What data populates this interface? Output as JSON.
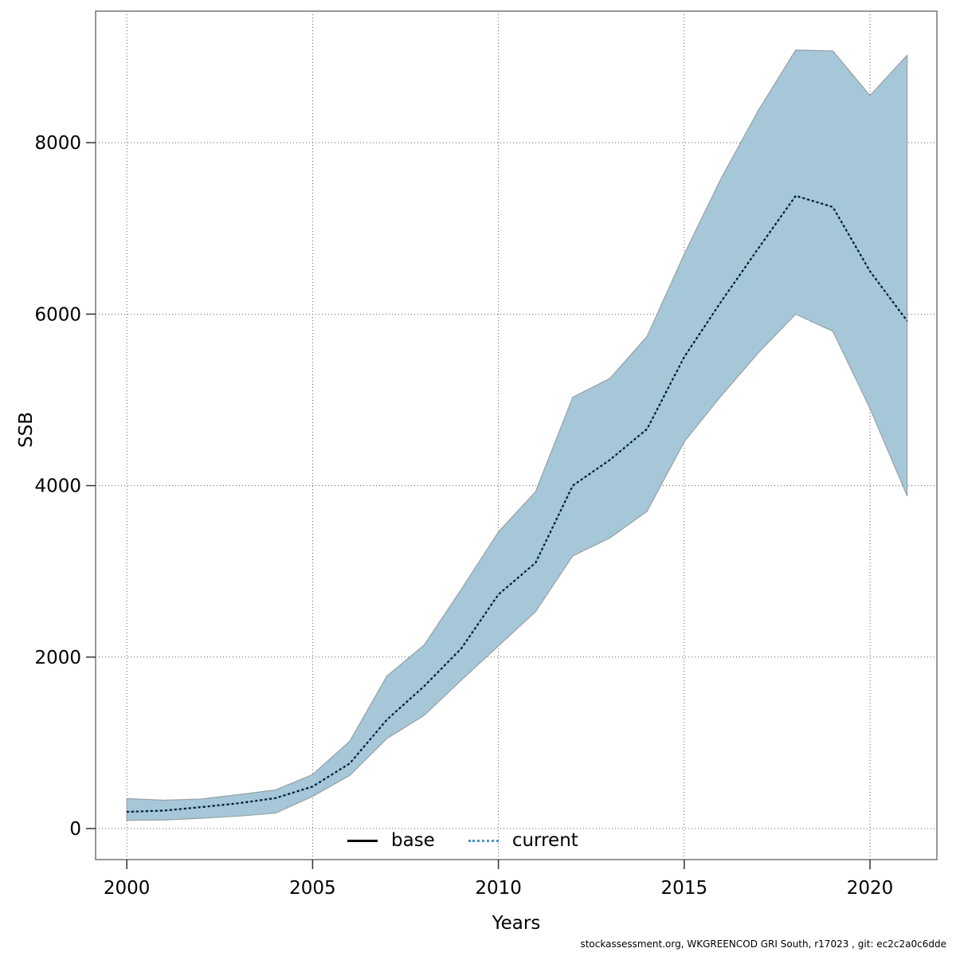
{
  "chart_data": {
    "type": "area",
    "title": "",
    "xlabel": "Years",
    "ylabel": "SSB",
    "x_ticks": [
      2000,
      2005,
      2010,
      2015,
      2020
    ],
    "y_ticks": [
      0,
      2000,
      4000,
      6000,
      8000
    ],
    "xlim": [
      1999.16,
      2021.8
    ],
    "ylim": [
      -362,
      9534
    ],
    "grid": true,
    "grid_style": "dotted",
    "legend_position": "bottom-center-inside",
    "legend": [
      {
        "label": "base",
        "line_style": "solid",
        "color": "#000000"
      },
      {
        "label": "current",
        "line_style": "dotted",
        "color": "#4d94c8"
      }
    ],
    "x": [
      2000,
      2001,
      2002,
      2003,
      2004,
      2005,
      2006,
      2007,
      2008,
      2009,
      2010,
      2011,
      2012,
      2013,
      2014,
      2015,
      2016,
      2017,
      2018,
      2019,
      2020,
      2021
    ],
    "series": [
      {
        "name": "current",
        "line_color": "#000000",
        "underlay_color": "#7ab3da",
        "ci_fill": "#a6c7d8",
        "ci_edge": "#97a1a7",
        "values": [
          195,
          210,
          250,
          295,
          355,
          490,
          760,
          1270,
          1660,
          2100,
          2730,
          3100,
          4000,
          4300,
          4660,
          5500,
          6150,
          6770,
          7380,
          7250,
          6500,
          5920
        ],
        "ci_lower": [
          95,
          100,
          120,
          145,
          180,
          375,
          620,
          1050,
          1320,
          1730,
          2130,
          2530,
          3180,
          3390,
          3700,
          4510,
          5050,
          5550,
          6000,
          5800,
          4900,
          3880
        ],
        "ci_upper": [
          350,
          330,
          345,
          395,
          450,
          630,
          1020,
          1780,
          2140,
          2790,
          3460,
          3930,
          5030,
          5250,
          5740,
          6700,
          7590,
          8380,
          9080,
          9070,
          8550,
          9020
        ]
      }
    ]
  },
  "footer": {
    "text": "stockassessment.org, WKGREENCOD  GRI  South, r17023 , git: ec2c2a0c6dde"
  }
}
